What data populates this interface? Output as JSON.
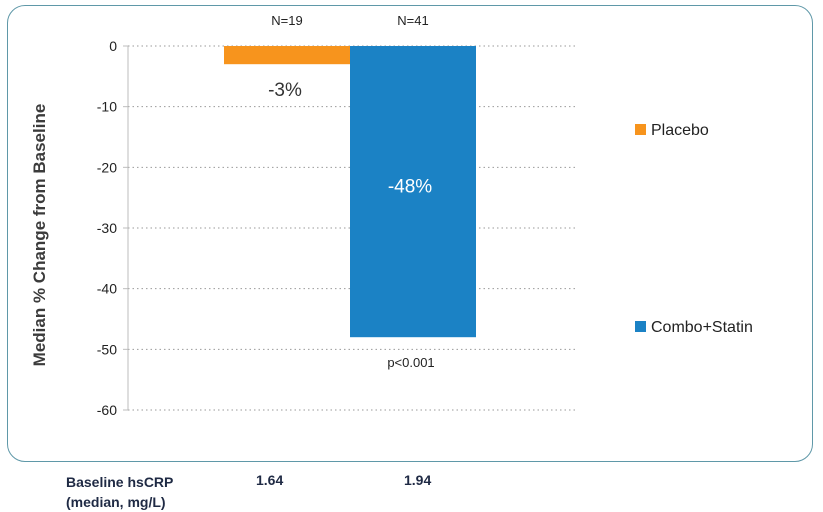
{
  "chart_data": {
    "type": "bar",
    "ylabel": "Median % Change from Baseline",
    "ylim": [
      -60,
      0
    ],
    "yticks": [
      0,
      -10,
      -20,
      -30,
      -40,
      -50,
      -60
    ],
    "grid": true,
    "legend_position": "right",
    "series": [
      {
        "name": "Placebo",
        "value": -3,
        "data_label": "-3%",
        "n_label": "N=19",
        "color": "#f7941d"
      },
      {
        "name": "Combo+Statin",
        "value": -48,
        "data_label": "-48%",
        "n_label": "N=41",
        "color": "#1b82c5",
        "annotation": "p<0.001"
      }
    ]
  },
  "footer": {
    "label_line1": "Baseline hsCRP",
    "label_line2": "(median, mg/L)",
    "values": [
      "1.64",
      "1.94"
    ]
  }
}
